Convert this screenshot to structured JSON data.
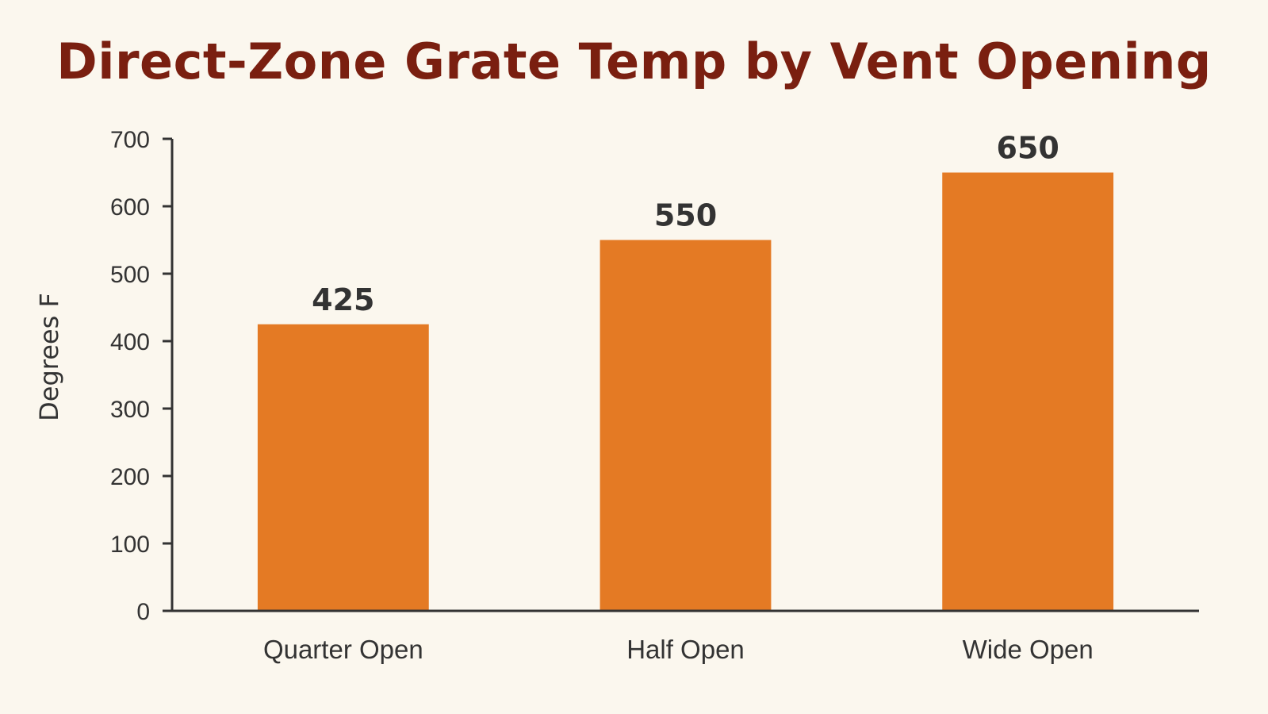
{
  "chart_data": {
    "type": "bar",
    "title": "Direct-Zone Grate Temp by Vent Opening",
    "xlabel": "",
    "ylabel": "Degrees F",
    "categories": [
      "Quarter Open",
      "Half Open",
      "Wide Open"
    ],
    "values": [
      425,
      550,
      650
    ],
    "ylim": [
      0,
      700
    ],
    "yticks": [
      0,
      100,
      200,
      300,
      400,
      500,
      600,
      700
    ],
    "bar_color": "#e47a24",
    "grid": false,
    "legend": "none",
    "data_labels": true
  },
  "colors": {
    "background": "#fbf7ee",
    "title": "#7a1f10",
    "axis": "#333333"
  }
}
